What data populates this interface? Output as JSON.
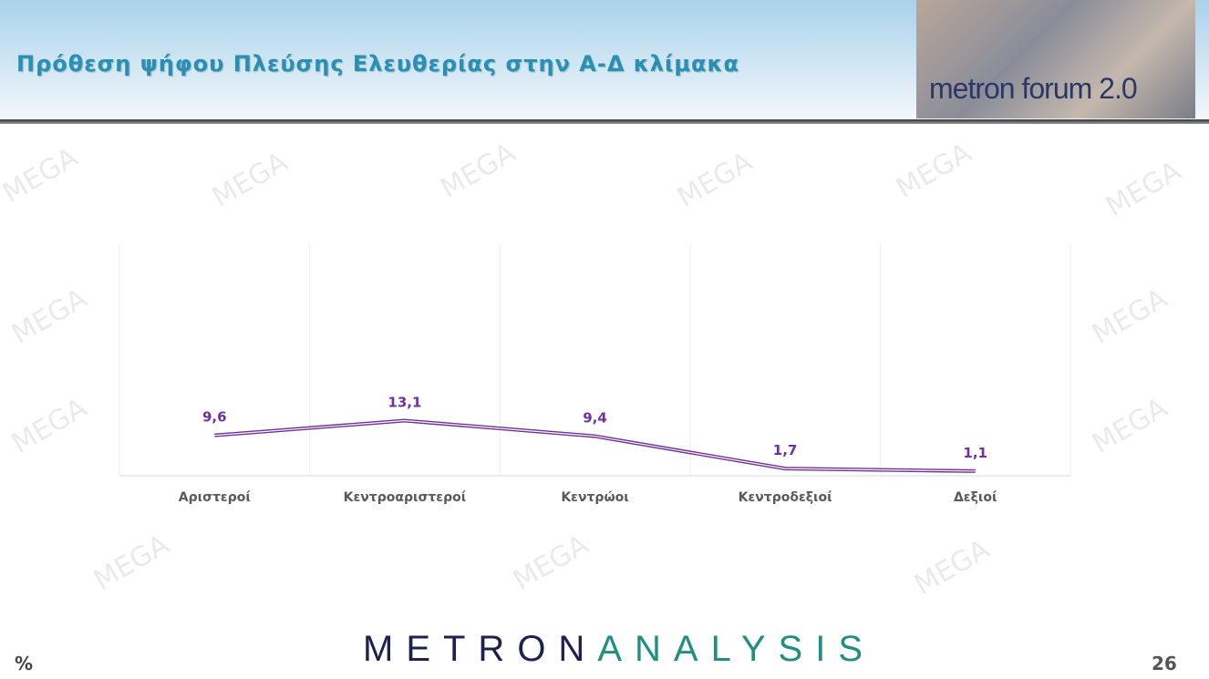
{
  "header": {
    "title": "Πρόθεση ψήφου Πλεύσης Ελευθερίας στην Α-Δ κλίμακα",
    "logo_text": "metron forum 2.0"
  },
  "footer": {
    "brand_part1": "METRON",
    "brand_part2": "ANALYSIS",
    "unit": "%",
    "page_number": "26"
  },
  "watermark": "MEGA",
  "chart_data": {
    "type": "line",
    "categories": [
      "Αριστεροί",
      "Κεντροαριστεροί",
      "Κεντρώοι",
      "Κεντροδεξιοί",
      "Δεξιοί"
    ],
    "values": [
      9.6,
      13.1,
      9.4,
      1.7,
      1.1
    ],
    "data_labels": [
      "9,6",
      "13,1",
      "9,4",
      "1,7",
      "1,1"
    ],
    "ylim": [
      0,
      55
    ],
    "grid": "vertical",
    "line_color": "#7030a0"
  }
}
